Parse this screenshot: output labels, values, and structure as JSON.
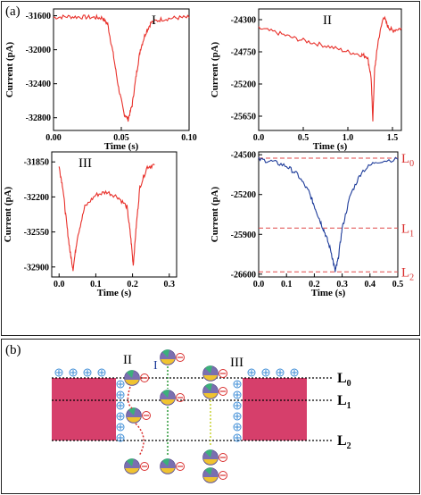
{
  "panel_a_label": "(a)",
  "panel_b_label": "(b)",
  "colors": {
    "red": "#e8302a",
    "blue": "#1e3c9a",
    "dashed": "#e04a4a",
    "wall": "#d63f6b"
  },
  "chart_data": [
    {
      "type": "line",
      "id": "I",
      "title": "I",
      "xlabel": "Time (s)",
      "ylabel": "Current (pA)",
      "xlim": [
        0.0,
        0.1
      ],
      "ylim": [
        -32950,
        -31520
      ],
      "xticks": [
        0.0,
        0.05,
        0.1
      ],
      "xtick_labels": [
        "0.00",
        "0.05",
        "0.10"
      ],
      "yticks": [
        -31600,
        -32000,
        -32400,
        -32800
      ],
      "ytick_labels": [
        "-31600",
        "-32000",
        "-32400",
        "-32800"
      ],
      "color": "#e8302a",
      "series": [
        {
          "values": [
            [
              0.0,
              -31620
            ],
            [
              0.01,
              -31610
            ],
            [
              0.02,
              -31615
            ],
            [
              0.03,
              -31620
            ],
            [
              0.036,
              -31625
            ],
            [
              0.04,
              -31700
            ],
            [
              0.044,
              -32050
            ],
            [
              0.048,
              -32450
            ],
            [
              0.052,
              -32750
            ],
            [
              0.055,
              -32820
            ],
            [
              0.058,
              -32650
            ],
            [
              0.061,
              -32300
            ],
            [
              0.064,
              -32000
            ],
            [
              0.068,
              -31800
            ],
            [
              0.072,
              -31680
            ],
            [
              0.08,
              -31640
            ],
            [
              0.09,
              -31625
            ],
            [
              0.1,
              -31620
            ]
          ]
        }
      ]
    },
    {
      "type": "line",
      "id": "II",
      "title": "II",
      "xlabel": "Time (s)",
      "ylabel": "Current (pA)",
      "xlim": [
        0.0,
        1.6
      ],
      "ylim": [
        -25850,
        -24150
      ],
      "xticks": [
        0.0,
        0.5,
        1.0,
        1.5
      ],
      "xtick_labels": [
        "0.0",
        "0.5",
        "1.0",
        "1.5"
      ],
      "yticks": [
        -24300,
        -24750,
        -25200,
        -25650
      ],
      "ytick_labels": [
        "-24300",
        "-24750",
        "-25200",
        "-25650"
      ],
      "color": "#e8302a",
      "series": [
        {
          "values": [
            [
              0.0,
              -24420
            ],
            [
              0.2,
              -24480
            ],
            [
              0.4,
              -24560
            ],
            [
              0.6,
              -24620
            ],
            [
              0.8,
              -24680
            ],
            [
              1.0,
              -24750
            ],
            [
              1.15,
              -24790
            ],
            [
              1.22,
              -24820
            ],
            [
              1.26,
              -25100
            ],
            [
              1.28,
              -25700
            ],
            [
              1.3,
              -25000
            ],
            [
              1.34,
              -24600
            ],
            [
              1.4,
              -24250
            ],
            [
              1.45,
              -24400
            ],
            [
              1.5,
              -24450
            ],
            [
              1.6,
              -24420
            ]
          ]
        }
      ]
    },
    {
      "type": "line",
      "id": "III",
      "title": "III",
      "xlabel": "Time (s)",
      "ylabel": "Current (pA)",
      "xlim": [
        -0.02,
        0.32
      ],
      "ylim": [
        -33000,
        -31750
      ],
      "xticks": [
        0.0,
        0.1,
        0.2,
        0.3
      ],
      "xtick_labels": [
        "0.0",
        "0.1",
        "0.2",
        "0.3"
      ],
      "yticks": [
        -31850,
        -32200,
        -32550,
        -32900
      ],
      "ytick_labels": [
        "-31850",
        "-32200",
        "-32550",
        "-32900"
      ],
      "color": "#e8302a",
      "series": [
        {
          "values": [
            [
              0.0,
              -31900
            ],
            [
              0.01,
              -32100
            ],
            [
              0.02,
              -32450
            ],
            [
              0.03,
              -32750
            ],
            [
              0.038,
              -32920
            ],
            [
              0.05,
              -32600
            ],
            [
              0.07,
              -32300
            ],
            [
              0.1,
              -32180
            ],
            [
              0.13,
              -32150
            ],
            [
              0.16,
              -32200
            ],
            [
              0.185,
              -32300
            ],
            [
              0.195,
              -32600
            ],
            [
              0.202,
              -32880
            ],
            [
              0.21,
              -32500
            ],
            [
              0.22,
              -32100
            ],
            [
              0.24,
              -31900
            ],
            [
              0.26,
              -31880
            ]
          ]
        }
      ]
    },
    {
      "type": "line",
      "id": "IV",
      "xlabel": "Time (s)",
      "ylabel": "Current (pA)",
      "xlim": [
        0.0,
        0.5
      ],
      "ylim": [
        -26650,
        -24450
      ],
      "xticks": [
        0.0,
        0.1,
        0.2,
        0.3,
        0.4,
        0.5
      ],
      "xtick_labels": [
        "0.0",
        "0.1",
        "0.2",
        "0.3",
        "0.4",
        "0.5"
      ],
      "yticks": [
        -24500,
        -25200,
        -25900,
        -26600
      ],
      "ytick_labels": [
        "-24500",
        "-25200",
        "-25900",
        "-26600"
      ],
      "color": "#1e3c9a",
      "levels": [
        {
          "label": "L",
          "sub": "0",
          "value": -24560
        },
        {
          "label": "L",
          "sub": "1",
          "value": -25790
        },
        {
          "label": "L",
          "sub": "2",
          "value": -26560
        }
      ],
      "series": [
        {
          "values": [
            [
              0.0,
              -24580
            ],
            [
              0.05,
              -24620
            ],
            [
              0.1,
              -24700
            ],
            [
              0.14,
              -24850
            ],
            [
              0.18,
              -25150
            ],
            [
              0.2,
              -25400
            ],
            [
              0.22,
              -25650
            ],
            [
              0.24,
              -25900
            ],
            [
              0.26,
              -26200
            ],
            [
              0.275,
              -26550
            ],
            [
              0.285,
              -26350
            ],
            [
              0.3,
              -25800
            ],
            [
              0.33,
              -25200
            ],
            [
              0.37,
              -24800
            ],
            [
              0.42,
              -24620
            ],
            [
              0.5,
              -24580
            ]
          ]
        }
      ]
    }
  ],
  "diagram": {
    "levels": [
      {
        "label": "L",
        "sub": "0"
      },
      {
        "label": "L",
        "sub": "1"
      },
      {
        "label": "L",
        "sub": "2"
      }
    ],
    "pathways": [
      "I",
      "II",
      "III"
    ],
    "minus_sign": "⊖",
    "plus_sign": "⊕"
  }
}
